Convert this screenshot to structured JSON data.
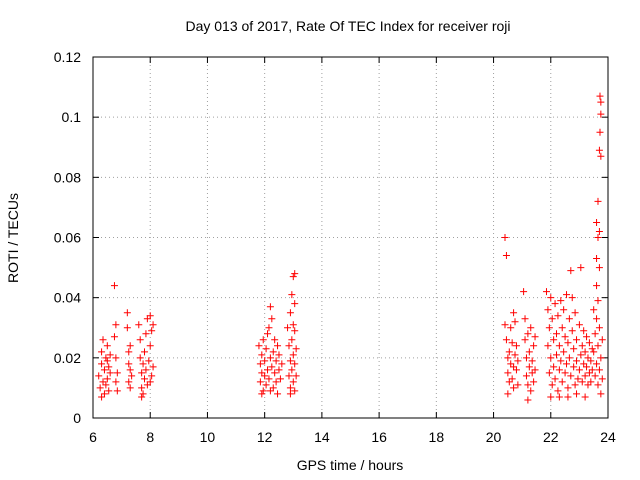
{
  "chart_data": {
    "type": "scatter",
    "title": "Day 013 of 2017, Rate Of TEC Index for receiver roji",
    "xlabel": "GPS time / hours",
    "ylabel": "ROTI / TECUs",
    "xlim": [
      6,
      24
    ],
    "ylim": [
      0,
      0.12
    ],
    "xticks": [
      6,
      8,
      10,
      12,
      14,
      16,
      18,
      20,
      22,
      24
    ],
    "yticks": [
      0,
      0.02,
      0.04,
      0.06,
      0.08,
      0.1,
      0.12
    ],
    "xtick_labels": [
      "6",
      "8",
      "10",
      "12",
      "14",
      "16",
      "18",
      "20",
      "22",
      "24"
    ],
    "ytick_labels": [
      "0",
      "0.02",
      "0.04",
      "0.06",
      "0.08",
      "0.1",
      "0.12"
    ],
    "grid": true,
    "marker": "+",
    "color": "#ff0000",
    "series": [
      {
        "name": "ROTI",
        "points": [
          [
            6.2,
            0.014
          ],
          [
            6.25,
            0.01
          ],
          [
            6.3,
            0.018
          ],
          [
            6.3,
            0.022
          ],
          [
            6.35,
            0.012
          ],
          [
            6.35,
            0.026
          ],
          [
            6.4,
            0.008
          ],
          [
            6.4,
            0.016
          ],
          [
            6.45,
            0.02
          ],
          [
            6.45,
            0.011
          ],
          [
            6.5,
            0.024
          ],
          [
            6.5,
            0.013
          ],
          [
            6.55,
            0.009
          ],
          [
            6.55,
            0.017
          ],
          [
            6.6,
            0.015
          ],
          [
            6.6,
            0.021
          ],
          [
            6.3,
            0.007
          ],
          [
            6.5,
            0.019
          ],
          [
            6.75,
            0.044
          ],
          [
            6.75,
            0.027
          ],
          [
            6.8,
            0.031
          ],
          [
            6.8,
            0.02
          ],
          [
            6.8,
            0.012
          ],
          [
            6.85,
            0.015
          ],
          [
            6.85,
            0.009
          ],
          [
            7.2,
            0.035
          ],
          [
            7.2,
            0.03
          ],
          [
            7.25,
            0.022
          ],
          [
            7.25,
            0.018
          ],
          [
            7.25,
            0.012
          ],
          [
            7.3,
            0.016
          ],
          [
            7.3,
            0.01
          ],
          [
            7.3,
            0.024
          ],
          [
            7.35,
            0.014
          ],
          [
            7.6,
            0.031
          ],
          [
            7.65,
            0.026
          ],
          [
            7.65,
            0.02
          ],
          [
            7.7,
            0.015
          ],
          [
            7.7,
            0.01
          ],
          [
            7.75,
            0.018
          ],
          [
            7.75,
            0.008
          ],
          [
            7.8,
            0.022
          ],
          [
            7.8,
            0.013
          ],
          [
            7.85,
            0.028
          ],
          [
            7.85,
            0.016
          ],
          [
            7.9,
            0.011
          ],
          [
            7.9,
            0.033
          ],
          [
            7.95,
            0.019
          ],
          [
            8.0,
            0.034
          ],
          [
            8.0,
            0.024
          ],
          [
            8.05,
            0.014
          ],
          [
            8.05,
            0.029
          ],
          [
            8.1,
            0.031
          ],
          [
            8.1,
            0.017
          ],
          [
            7.7,
            0.007
          ],
          [
            8.0,
            0.012
          ],
          [
            11.8,
            0.024
          ],
          [
            11.85,
            0.018
          ],
          [
            11.85,
            0.012
          ],
          [
            11.9,
            0.015
          ],
          [
            11.9,
            0.021
          ],
          [
            11.95,
            0.009
          ],
          [
            11.95,
            0.026
          ],
          [
            12.0,
            0.014
          ],
          [
            12.0,
            0.019
          ],
          [
            12.05,
            0.011
          ],
          [
            12.05,
            0.023
          ],
          [
            12.1,
            0.016
          ],
          [
            12.1,
            0.028
          ],
          [
            12.15,
            0.013
          ],
          [
            12.15,
            0.03
          ],
          [
            12.2,
            0.02
          ],
          [
            12.2,
            0.037
          ],
          [
            12.25,
            0.017
          ],
          [
            12.25,
            0.033
          ],
          [
            12.3,
            0.01
          ],
          [
            12.3,
            0.022
          ],
          [
            12.35,
            0.015
          ],
          [
            12.35,
            0.026
          ],
          [
            12.4,
            0.019
          ],
          [
            12.4,
            0.012
          ],
          [
            12.45,
            0.024
          ],
          [
            12.5,
            0.016
          ],
          [
            12.5,
            0.021
          ],
          [
            12.55,
            0.013
          ],
          [
            12.6,
            0.018
          ],
          [
            11.9,
            0.008
          ],
          [
            12.2,
            0.009
          ],
          [
            12.45,
            0.008
          ],
          [
            12.8,
            0.03
          ],
          [
            12.85,
            0.024
          ],
          [
            12.85,
            0.014
          ],
          [
            12.9,
            0.035
          ],
          [
            12.9,
            0.019
          ],
          [
            12.9,
            0.01
          ],
          [
            12.95,
            0.041
          ],
          [
            12.95,
            0.026
          ],
          [
            12.95,
            0.016
          ],
          [
            13.0,
            0.047
          ],
          [
            13.0,
            0.031
          ],
          [
            13.0,
            0.021
          ],
          [
            13.0,
            0.012
          ],
          [
            13.05,
            0.048
          ],
          [
            13.05,
            0.029
          ],
          [
            13.05,
            0.018
          ],
          [
            13.05,
            0.009
          ],
          [
            13.1,
            0.023
          ],
          [
            13.1,
            0.014
          ],
          [
            12.9,
            0.008
          ],
          [
            13.05,
            0.038
          ],
          [
            20.4,
            0.06
          ],
          [
            20.45,
            0.054
          ],
          [
            20.4,
            0.031
          ],
          [
            20.45,
            0.026
          ],
          [
            20.5,
            0.02
          ],
          [
            20.5,
            0.015
          ],
          [
            20.55,
            0.022
          ],
          [
            20.55,
            0.012
          ],
          [
            20.6,
            0.03
          ],
          [
            20.6,
            0.018
          ],
          [
            20.65,
            0.013
          ],
          [
            20.65,
            0.025
          ],
          [
            20.7,
            0.017
          ],
          [
            20.7,
            0.01
          ],
          [
            20.75,
            0.021
          ],
          [
            20.75,
            0.032
          ],
          [
            20.8,
            0.016
          ],
          [
            20.8,
            0.024
          ],
          [
            20.85,
            0.011
          ],
          [
            20.85,
            0.019
          ],
          [
            20.5,
            0.008
          ],
          [
            20.7,
            0.035
          ],
          [
            21.05,
            0.042
          ],
          [
            21.1,
            0.033
          ],
          [
            21.1,
            0.026
          ],
          [
            21.15,
            0.02
          ],
          [
            21.15,
            0.014
          ],
          [
            21.2,
            0.028
          ],
          [
            21.2,
            0.011
          ],
          [
            21.25,
            0.017
          ],
          [
            21.25,
            0.022
          ],
          [
            21.3,
            0.009
          ],
          [
            21.3,
            0.03
          ],
          [
            21.35,
            0.015
          ],
          [
            21.35,
            0.019
          ],
          [
            21.4,
            0.024
          ],
          [
            21.4,
            0.012
          ],
          [
            21.45,
            0.016
          ],
          [
            21.45,
            0.027
          ],
          [
            21.2,
            0.006
          ],
          [
            21.85,
            0.042
          ],
          [
            21.9,
            0.036
          ],
          [
            21.9,
            0.024
          ],
          [
            21.95,
            0.03
          ],
          [
            21.95,
            0.015
          ],
          [
            22.0,
            0.04
          ],
          [
            22.0,
            0.02
          ],
          [
            22.05,
            0.033
          ],
          [
            22.05,
            0.011
          ],
          [
            22.1,
            0.026
          ],
          [
            22.1,
            0.017
          ],
          [
            22.15,
            0.038
          ],
          [
            22.15,
            0.013
          ],
          [
            22.2,
            0.028
          ],
          [
            22.2,
            0.021
          ],
          [
            22.25,
            0.034
          ],
          [
            22.25,
            0.009
          ],
          [
            22.3,
            0.024
          ],
          [
            22.3,
            0.016
          ],
          [
            22.35,
            0.039
          ],
          [
            22.35,
            0.019
          ],
          [
            22.4,
            0.03
          ],
          [
            22.4,
            0.012
          ],
          [
            22.45,
            0.022
          ],
          [
            22.45,
            0.036
          ],
          [
            22.5,
            0.015
          ],
          [
            22.5,
            0.027
          ],
          [
            22.55,
            0.041
          ],
          [
            22.55,
            0.018
          ],
          [
            22.6,
            0.025
          ],
          [
            22.6,
            0.01
          ],
          [
            22.65,
            0.033
          ],
          [
            22.65,
            0.02
          ],
          [
            22.7,
            0.049
          ],
          [
            22.7,
            0.014
          ],
          [
            22.75,
            0.029
          ],
          [
            22.75,
            0.04
          ],
          [
            22.8,
            0.017
          ],
          [
            22.8,
            0.023
          ],
          [
            22.85,
            0.011
          ],
          [
            22.85,
            0.035
          ],
          [
            22.9,
            0.019
          ],
          [
            22.9,
            0.026
          ],
          [
            22.95,
            0.013
          ],
          [
            23.0,
            0.031
          ],
          [
            23.0,
            0.016
          ],
          [
            23.05,
            0.05
          ],
          [
            23.05,
            0.021
          ],
          [
            23.1,
            0.024
          ],
          [
            23.1,
            0.012
          ],
          [
            23.15,
            0.018
          ],
          [
            23.15,
            0.029
          ],
          [
            23.2,
            0.014
          ],
          [
            23.2,
            0.022
          ],
          [
            23.25,
            0.017
          ],
          [
            23.25,
            0.027
          ],
          [
            23.3,
            0.011
          ],
          [
            23.3,
            0.02
          ],
          [
            23.35,
            0.015
          ],
          [
            23.35,
            0.025
          ],
          [
            23.4,
            0.019
          ],
          [
            23.4,
            0.012
          ],
          [
            23.45,
            0.023
          ],
          [
            23.45,
            0.016
          ],
          [
            22.0,
            0.007
          ],
          [
            22.3,
            0.007
          ],
          [
            22.6,
            0.007
          ],
          [
            22.9,
            0.008
          ],
          [
            23.2,
            0.007
          ],
          [
            23.5,
            0.036
          ],
          [
            23.5,
            0.022
          ],
          [
            23.55,
            0.014
          ],
          [
            23.55,
            0.028
          ],
          [
            23.6,
            0.065
          ],
          [
            23.6,
            0.053
          ],
          [
            23.6,
            0.044
          ],
          [
            23.6,
            0.033
          ],
          [
            23.6,
            0.018
          ],
          [
            23.65,
            0.072
          ],
          [
            23.65,
            0.06
          ],
          [
            23.65,
            0.039
          ],
          [
            23.65,
            0.024
          ],
          [
            23.65,
            0.011
          ],
          [
            23.7,
            0.089
          ],
          [
            23.7,
            0.05
          ],
          [
            23.7,
            0.03
          ],
          [
            23.7,
            0.016
          ],
          [
            23.72,
            0.107
          ],
          [
            23.72,
            0.095
          ],
          [
            23.75,
            0.105
          ],
          [
            23.75,
            0.087
          ],
          [
            23.75,
            0.101
          ],
          [
            23.75,
            0.02
          ],
          [
            23.75,
            0.008
          ],
          [
            23.8,
            0.026
          ],
          [
            23.8,
            0.013
          ],
          [
            23.7,
            0.062
          ]
        ]
      }
    ]
  }
}
